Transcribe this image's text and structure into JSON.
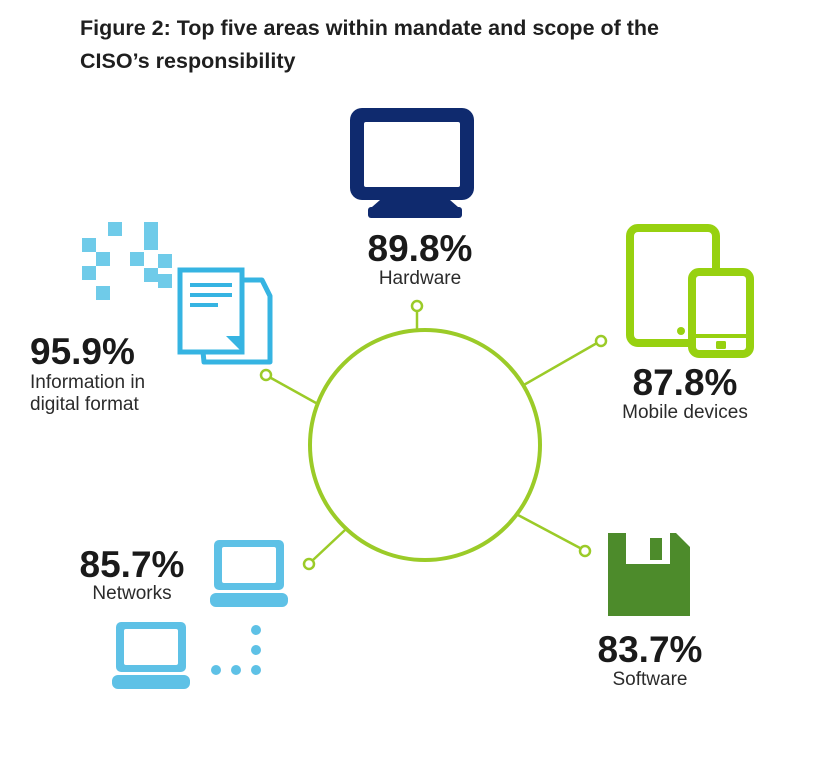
{
  "title_line1": "Figure 2: Top five areas within mandate and scope of the",
  "title_line2": "CISO’s responsibility",
  "colors": {
    "ring": "#9bcb28",
    "hardware": "#0f2a6e",
    "mobile": "#97d110",
    "software": "#4d8b2b",
    "networks": "#5ec1e6",
    "information": "#36b4e2"
  },
  "chart_data": {
    "type": "infographic",
    "title": "Figure 2: Top five areas within mandate and scope of the CISO’s responsibility",
    "unit": "%",
    "items": [
      {
        "key": "information",
        "label_lines": [
          "Information in",
          "digital format"
        ],
        "value": 95.9,
        "value_text": "95.9%",
        "icon": "documents-icon"
      },
      {
        "key": "hardware",
        "label_lines": [
          "Hardware"
        ],
        "value": 89.8,
        "value_text": "89.8%",
        "icon": "monitor-icon"
      },
      {
        "key": "mobile",
        "label_lines": [
          "Mobile devices"
        ],
        "value": 87.8,
        "value_text": "87.8%",
        "icon": "tablet-phone-icon"
      },
      {
        "key": "networks",
        "label_lines": [
          "Networks"
        ],
        "value": 85.7,
        "value_text": "85.7%",
        "icon": "network-computers-icon"
      },
      {
        "key": "software",
        "label_lines": [
          "Software"
        ],
        "value": 83.7,
        "value_text": "83.7%",
        "icon": "floppy-disk-icon"
      }
    ]
  }
}
